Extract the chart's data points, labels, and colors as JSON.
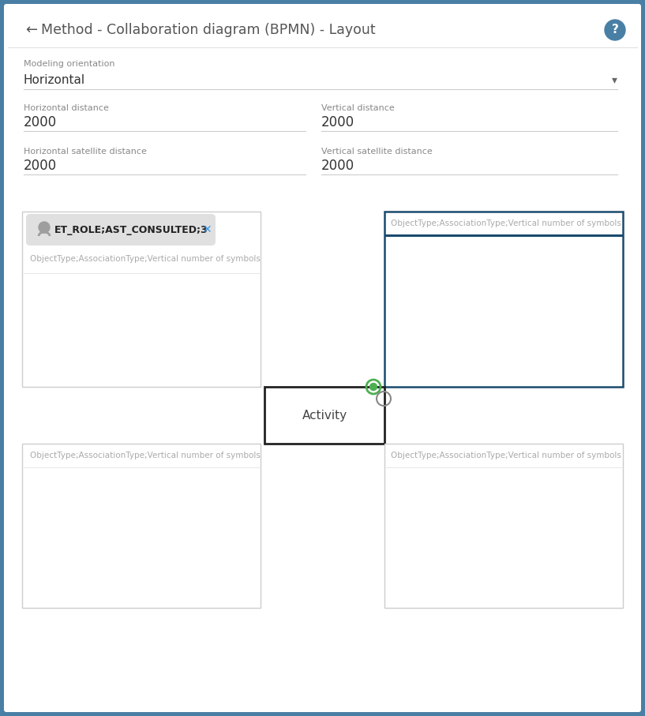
{
  "title": "Method - Collaboration diagram (BPMN) - Layout",
  "bg_color": "#4a7fa5",
  "panel_bg": "#ffffff",
  "title_color": "#555555",
  "modeling_orientation_label": "Modeling orientation",
  "modeling_orientation_value": "Horizontal",
  "horiz_dist_label": "Horizontal distance",
  "horiz_dist_value": "2000",
  "vert_dist_label": "Vertical distance",
  "vert_dist_value": "2000",
  "horiz_sat_label": "Horizontal satellite distance",
  "horiz_sat_value": "2000",
  "vert_sat_label": "Vertical satellite distance",
  "vert_sat_value": "2000",
  "chip_text": "ET_ROLE;AST_CONSULTED;3",
  "chip_bg": "#e0e0e0",
  "chip_text_color": "#222222",
  "placeholder_text": "ObjectType;AssociationType;Vertical number of symbols",
  "placeholder_color": "#aaaaaa",
  "activity_text": "Activity",
  "activity_color": "#444444",
  "green_circle_color": "#4caf50",
  "gray_circle_color": "#888888",
  "blue_line_color": "#1a4a6e",
  "input_underline_color": "#cccccc",
  "right_box_border_color": "#1a4a6e",
  "header_sep_color": "#e0e0e0",
  "box_border_color": "#cccccc",
  "center_box_border": "#222222",
  "label_small_color": "#888888",
  "value_color": "#333333",
  "arrow_color": "#666666",
  "x_color": "#3399ee",
  "person_icon_color": "#666666"
}
